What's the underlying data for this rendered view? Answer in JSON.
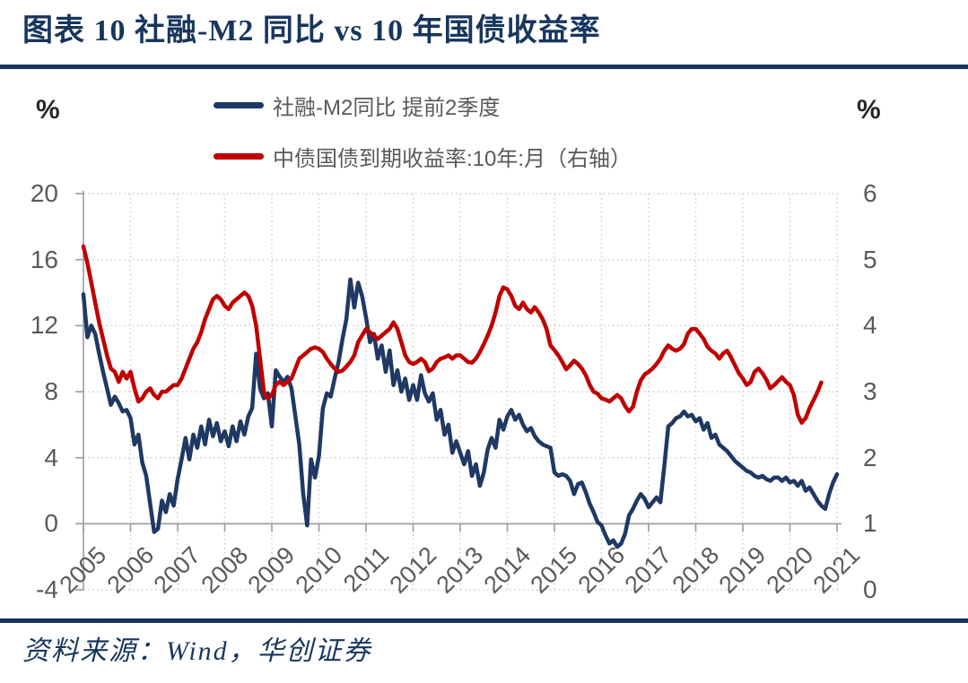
{
  "header": {
    "title": "图表 10   社融-M2 同比  vs 10 年国债收益率"
  },
  "footer": {
    "source": "资料来源：Wind，华创证券"
  },
  "legend": [
    {
      "label": "社融-M2同比 提前2季度",
      "color": "#1F3864"
    },
    {
      "label": "中债国债到期收益率:10年:月（右轴）",
      "color": "#C00000"
    }
  ],
  "colors": {
    "accent": "#17365D",
    "tick_text": "#595959",
    "grid": "#CFCFCF",
    "axis": "#9B9B9B",
    "series_blue": "#1F3864",
    "series_red": "#C00000"
  },
  "chart_data": {
    "type": "line",
    "title": "社融-M2 同比 vs 10 年国债收益率",
    "x_start_year": 2005,
    "x_interval_months": 1,
    "x_tick_years": [
      2005,
      2006,
      2007,
      2008,
      2009,
      2010,
      2011,
      2012,
      2013,
      2014,
      2015,
      2016,
      2017,
      2018,
      2019,
      2020,
      2021
    ],
    "left_axis": {
      "unit": "%",
      "min": -4,
      "max": 20,
      "ticks": [
        20,
        16,
        12,
        8,
        4,
        0,
        -4
      ]
    },
    "right_axis": {
      "unit": "%",
      "min": 0,
      "max": 6,
      "ticks": [
        6,
        5,
        4,
        3,
        2,
        1,
        0
      ]
    },
    "grid": "dotted",
    "legend_position": "top",
    "series": [
      {
        "name": "社融-M2同比 提前2季度",
        "axis": "left",
        "color": "#1F3864",
        "values": [
          13.9,
          11.3,
          12.0,
          11.5,
          10.3,
          9.2,
          8.2,
          7.2,
          7.7,
          7.3,
          6.8,
          6.9,
          6.4,
          4.8,
          5.4,
          3.7,
          2.9,
          1.2,
          -0.5,
          -0.3,
          1.4,
          0.7,
          1.8,
          1.1,
          2.7,
          3.9,
          5.2,
          3.9,
          5.4,
          4.6,
          5.9,
          4.8,
          6.3,
          5.3,
          6.1,
          5.0,
          5.6,
          4.7,
          5.9,
          5.0,
          6.2,
          5.4,
          6.5,
          7.0,
          10.3,
          8.2,
          7.6,
          7.9,
          5.9,
          9.3,
          8.9,
          8.6,
          8.9,
          8.2,
          6.5,
          4.8,
          1.8,
          -0.1,
          3.9,
          2.8,
          4.1,
          7.0,
          7.9,
          7.7,
          8.8,
          9.8,
          11.2,
          12.4,
          14.8,
          13.1,
          14.6,
          13.8,
          12.5,
          11.0,
          11.5,
          10.0,
          10.8,
          9.2,
          10.5,
          8.4,
          9.3,
          8.0,
          8.8,
          7.5,
          8.4,
          7.5,
          9.0,
          7.9,
          7.4,
          7.9,
          6.3,
          6.9,
          5.4,
          6.0,
          4.3,
          5.0,
          4.3,
          3.6,
          4.4,
          2.9,
          3.6,
          2.3,
          3.1,
          4.5,
          5.2,
          4.6,
          6.3,
          5.7,
          6.5,
          6.9,
          6.3,
          6.6,
          6.0,
          5.6,
          5.8,
          5.3,
          5.0,
          4.8,
          4.7,
          4.6,
          3.1,
          2.9,
          3.0,
          2.9,
          2.6,
          1.8,
          2.4,
          2.5,
          1.9,
          1.2,
          0.7,
          0.1,
          -0.1,
          -0.7,
          -1.2,
          -1.0,
          -1.4,
          -1.2,
          -0.6,
          0.5,
          0.9,
          1.4,
          1.8,
          1.5,
          1.0,
          1.3,
          1.6,
          1.3,
          3.5,
          5.9,
          6.1,
          6.4,
          6.5,
          6.8,
          6.5,
          6.6,
          6.2,
          6.4,
          5.7,
          6.1,
          5.2,
          5.4,
          4.8,
          4.6,
          4.4,
          4.1,
          3.8,
          3.6,
          3.4,
          3.2,
          3.1,
          2.9,
          2.8,
          2.9,
          2.7,
          2.6,
          2.8,
          2.8,
          2.6,
          2.8,
          2.5,
          2.6,
          2.3,
          2.6,
          2.0,
          2.2,
          1.8,
          1.4,
          1.1,
          0.9,
          1.8,
          2.5,
          3.0
        ]
      },
      {
        "name": "中债国债到期收益率:10年:月（右轴）",
        "axis": "right",
        "color": "#C00000",
        "values": [
          5.2,
          4.95,
          4.65,
          4.35,
          4.05,
          3.8,
          3.55,
          3.35,
          3.3,
          3.15,
          3.3,
          3.2,
          3.3,
          3.05,
          2.85,
          2.9,
          3.0,
          3.05,
          2.95,
          2.9,
          3.0,
          3.0,
          3.05,
          3.1,
          3.1,
          3.2,
          3.35,
          3.5,
          3.65,
          3.75,
          3.9,
          4.1,
          4.25,
          4.4,
          4.45,
          4.4,
          4.3,
          4.25,
          4.35,
          4.4,
          4.45,
          4.5,
          4.45,
          4.3,
          4.0,
          3.5,
          3.0,
          2.9,
          2.95,
          3.1,
          3.15,
          3.1,
          3.15,
          3.2,
          3.35,
          3.5,
          3.55,
          3.6,
          3.65,
          3.67,
          3.65,
          3.6,
          3.5,
          3.42,
          3.35,
          3.3,
          3.32,
          3.38,
          3.45,
          3.55,
          3.75,
          3.85,
          3.95,
          3.9,
          3.85,
          3.8,
          3.85,
          3.9,
          3.95,
          4.05,
          3.95,
          3.75,
          3.55,
          3.45,
          3.42,
          3.45,
          3.5,
          3.45,
          3.31,
          3.35,
          3.45,
          3.5,
          3.52,
          3.55,
          3.5,
          3.55,
          3.55,
          3.5,
          3.45,
          3.44,
          3.5,
          3.6,
          3.72,
          3.85,
          4.0,
          4.2,
          4.45,
          4.58,
          4.55,
          4.45,
          4.3,
          4.25,
          4.35,
          4.25,
          4.2,
          4.28,
          4.2,
          4.1,
          3.95,
          3.7,
          3.63,
          3.55,
          3.45,
          3.34,
          3.4,
          3.47,
          3.42,
          3.35,
          3.25,
          3.1,
          3.0,
          2.97,
          2.9,
          2.88,
          2.85,
          2.9,
          2.95,
          2.9,
          2.78,
          2.7,
          2.77,
          3.0,
          3.17,
          3.26,
          3.3,
          3.35,
          3.42,
          3.5,
          3.62,
          3.7,
          3.65,
          3.62,
          3.65,
          3.72,
          3.88,
          3.95,
          3.95,
          3.88,
          3.8,
          3.68,
          3.62,
          3.58,
          3.5,
          3.58,
          3.62,
          3.52,
          3.4,
          3.28,
          3.2,
          3.1,
          3.15,
          3.3,
          3.35,
          3.28,
          3.18,
          3.05,
          3.1,
          3.16,
          3.22,
          3.15,
          3.1,
          2.95,
          2.65,
          2.53,
          2.6,
          2.75,
          2.87,
          2.99,
          3.14
        ]
      }
    ]
  }
}
